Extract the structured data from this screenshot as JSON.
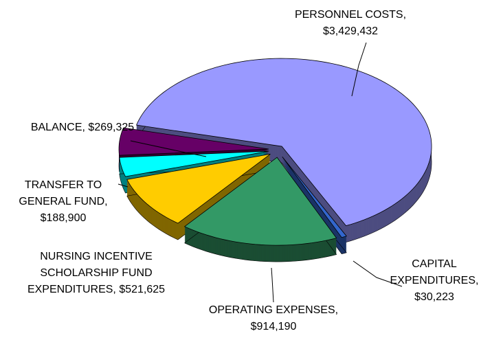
{
  "chart_data": {
    "type": "pie",
    "categories": [
      "PERSONNEL COSTS,",
      "CAPITAL EXPENDITURES,",
      "OPERATING EXPENSES,",
      "NURSING INCENTIVE SCHOLARSHIP FUND EXPENDITURES,",
      "TRANSFER TO GENERAL FUND,",
      "BALANCE,"
    ],
    "values": [
      3429432,
      30223,
      914190,
      521625,
      188900,
      269325
    ],
    "value_labels": [
      "$3,429,432",
      "$30,223",
      "$914,190",
      "$521,625",
      "$188,900",
      "$269,325"
    ],
    "colors": [
      "#9999ff",
      "#3366cc",
      "#339966",
      "#ffcc00",
      "#00ffff",
      "#660066"
    ]
  }
}
